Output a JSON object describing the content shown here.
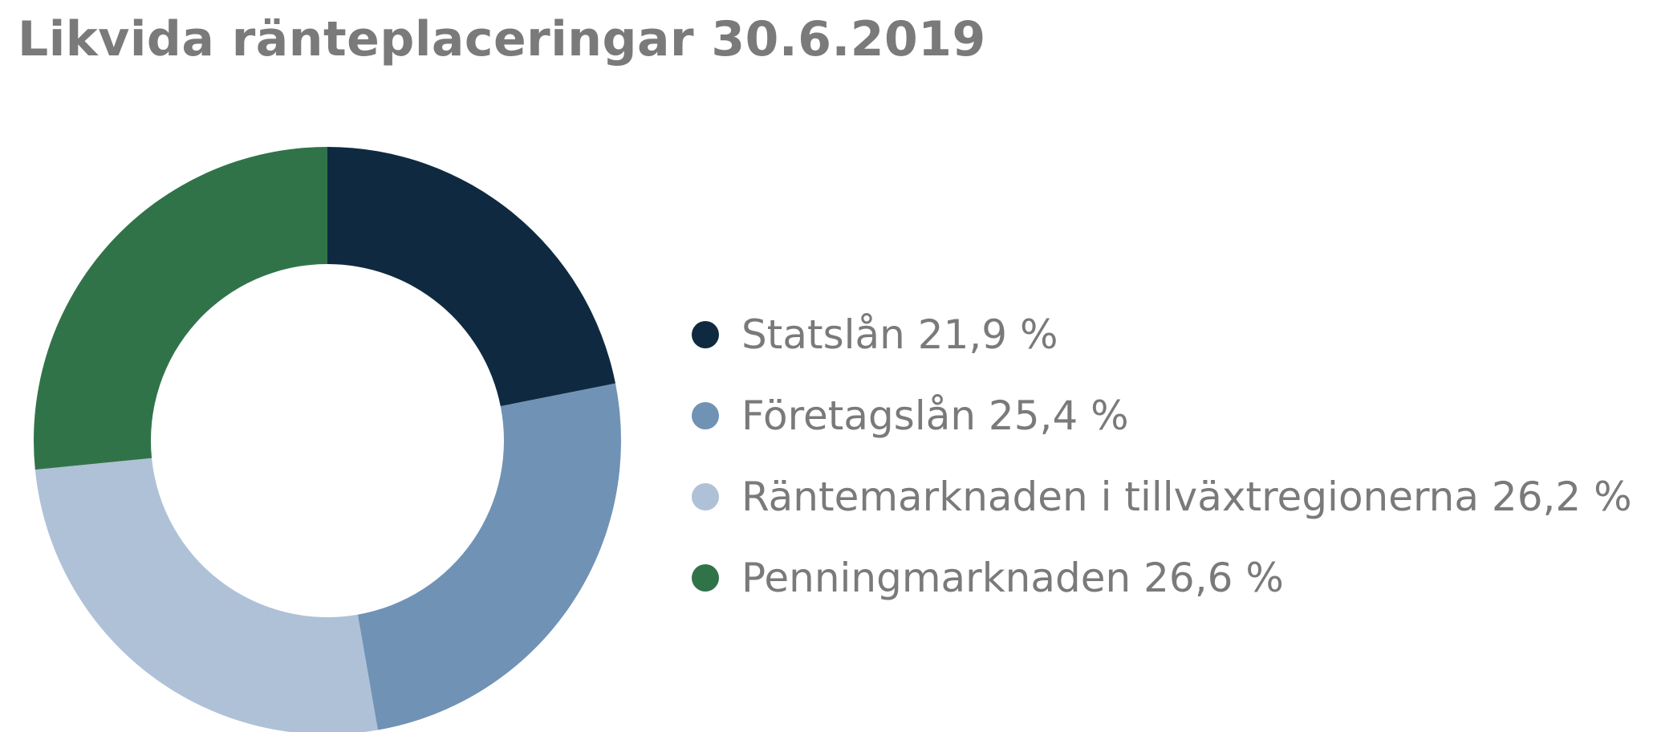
{
  "chart_data": {
    "type": "pie",
    "variant": "donut",
    "title": "Likvida ränteplaceringar 30.6.2019",
    "legend_position": "right",
    "slices": [
      {
        "name": "Statslån",
        "value": 21.9,
        "label": "Statslån 21,9 %",
        "color": "#0f2a40"
      },
      {
        "name": "Företagslån",
        "value": 25.4,
        "label": "Företagslån 25,4 %",
        "color": "#7092b5"
      },
      {
        "name": "Räntemarknaden i tillväxtregionerna",
        "value": 26.2,
        "label": "Räntemarknaden i tillväxtregionerna 26,2 %",
        "color": "#aec1d7"
      },
      {
        "name": "Penningmarknaden",
        "value": 26.6,
        "label": "Penningmarknaden 26,6 %",
        "color": "#317349"
      }
    ]
  }
}
